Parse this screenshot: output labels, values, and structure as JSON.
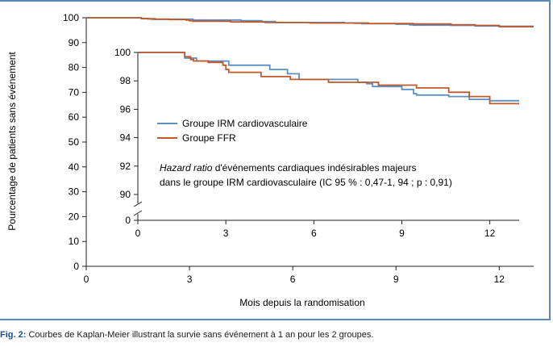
{
  "chart_data": {
    "type": "line",
    "title": "",
    "xlabel": "Mois depuis la randomisation",
    "ylabel": "Pourcentage de patients sans événement",
    "xlim": [
      0,
      13
    ],
    "ylim": [
      0,
      100
    ],
    "x_ticks": [
      "0",
      "3",
      "6",
      "9",
      "12"
    ],
    "y_ticks": [
      "0",
      "10",
      "20",
      "30",
      "40",
      "50",
      "60",
      "70",
      "80",
      "90",
      "100"
    ],
    "legend_placement": "inset",
    "series": [
      {
        "name": "Groupe IRM cardiovasculaire",
        "color": "#5a8fc8",
        "points": [
          [
            0,
            100
          ],
          [
            1.5,
            100
          ],
          [
            1.6,
            99.6
          ],
          [
            2.0,
            99.4
          ],
          [
            2.4,
            99.4
          ],
          [
            2.8,
            99.4
          ],
          [
            3.1,
            99.1
          ],
          [
            3.5,
            99.1
          ],
          [
            4.5,
            98.8
          ],
          [
            4.9,
            98.8
          ],
          [
            5.1,
            98.5
          ],
          [
            5.5,
            98.1
          ],
          [
            7.4,
            98.1
          ],
          [
            7.5,
            97.9
          ],
          [
            7.8,
            97.8
          ],
          [
            8.0,
            97.6
          ],
          [
            8.8,
            97.6
          ],
          [
            9.0,
            97.4
          ],
          [
            9.4,
            97.1
          ],
          [
            9.5,
            97.0
          ],
          [
            10.1,
            97.0
          ],
          [
            10.6,
            96.9
          ],
          [
            11.0,
            96.9
          ],
          [
            11.3,
            96.7
          ],
          [
            11.9,
            96.7
          ],
          [
            12.0,
            96.6
          ],
          [
            13.0,
            96.6
          ]
        ]
      },
      {
        "name": "Groupe FFR",
        "color": "#c0582a",
        "points": [
          [
            0,
            100
          ],
          [
            1.5,
            100
          ],
          [
            1.6,
            99.7
          ],
          [
            1.8,
            99.5
          ],
          [
            1.9,
            99.4
          ],
          [
            2.4,
            99.3
          ],
          [
            2.9,
            99.1
          ],
          [
            3.0,
            98.8
          ],
          [
            3.1,
            98.6
          ],
          [
            4.1,
            98.6
          ],
          [
            4.2,
            98.3
          ],
          [
            4.8,
            98.3
          ],
          [
            5.2,
            98.1
          ],
          [
            6.4,
            98.1
          ],
          [
            6.5,
            97.9
          ],
          [
            8.1,
            97.9
          ],
          [
            8.2,
            97.7
          ],
          [
            9.4,
            97.7
          ],
          [
            9.5,
            97.5
          ],
          [
            10.5,
            97.5
          ],
          [
            10.6,
            97.2
          ],
          [
            11.1,
            97.2
          ],
          [
            11.3,
            96.9
          ],
          [
            11.9,
            96.9
          ],
          [
            12.0,
            96.4
          ],
          [
            13.0,
            96.4
          ]
        ]
      }
    ],
    "inset": {
      "xlim": [
        0,
        13
      ],
      "ylim": [
        89,
        100
      ],
      "x_ticks": [
        "0",
        "3",
        "6",
        "9",
        "12"
      ],
      "y_ticks": [
        "90",
        "92",
        "94",
        "96",
        "98",
        "100"
      ],
      "y_zero_label": "0"
    },
    "annotation": {
      "hr_italic": "Hazard ratio",
      "line1_rest": " d'événements cardiaques indésirables majeurs",
      "line2": "dans le groupe IRM cardiovasculaire (IC 95 % : 0,47-1, 94 ; p : 0,91)"
    }
  },
  "caption": {
    "label": "Fig. 2:",
    "text": " Courbes de Kaplan-Meier illustrant la survie sans événement à 1 an pour les 2 groupes."
  }
}
